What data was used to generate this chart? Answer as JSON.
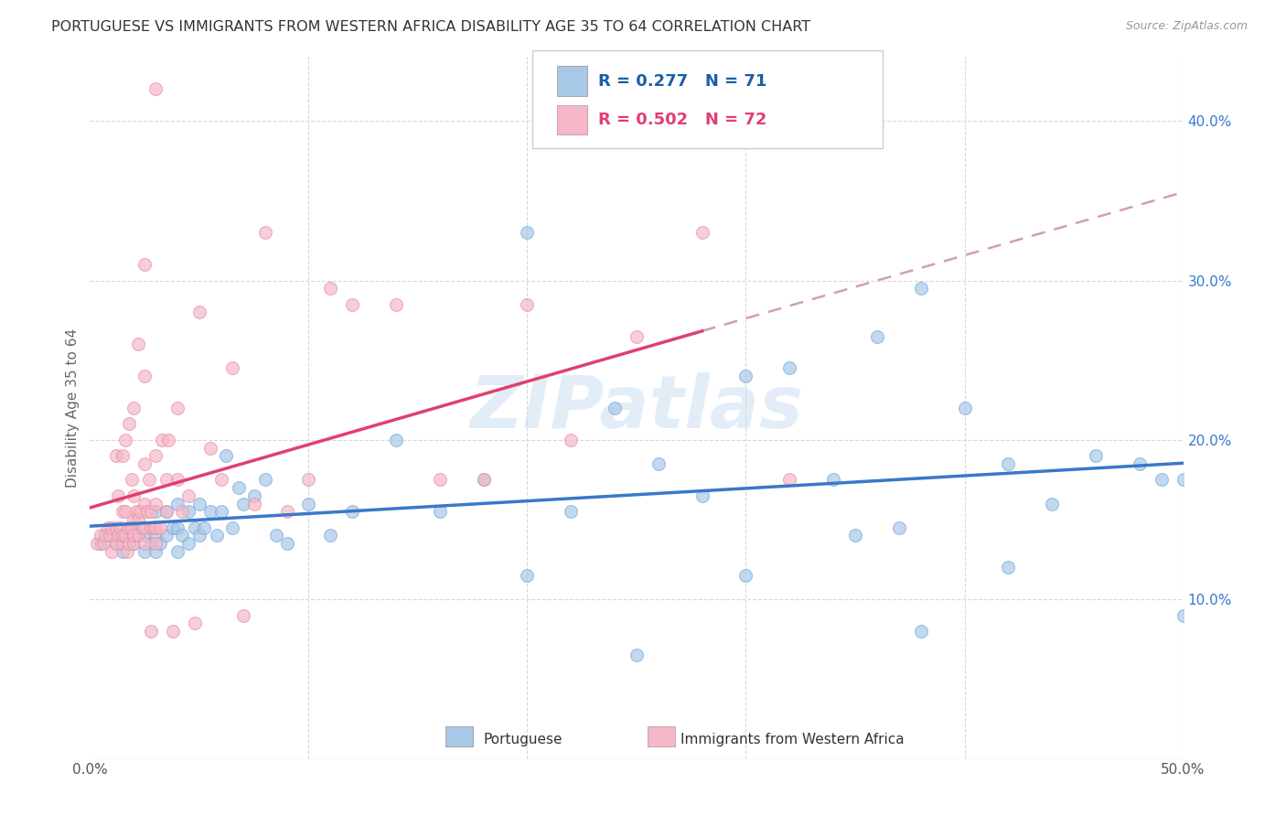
{
  "title": "PORTUGUESE VS IMMIGRANTS FROM WESTERN AFRICA DISABILITY AGE 35 TO 64 CORRELATION CHART",
  "source": "Source: ZipAtlas.com",
  "ylabel": "Disability Age 35 to 64",
  "xlim": [
    0.0,
    0.5
  ],
  "ylim": [
    0.0,
    0.44
  ],
  "xticks": [
    0.0,
    0.1,
    0.2,
    0.3,
    0.4,
    0.5
  ],
  "yticks": [
    0.1,
    0.2,
    0.3,
    0.4
  ],
  "xticklabels": [
    "0.0%",
    "",
    "",
    "",
    "",
    "50.0%"
  ],
  "yticklabels": [
    "10.0%",
    "20.0%",
    "30.0%",
    "40.0%"
  ],
  "color_blue": "#a8c8e8",
  "color_pink": "#f4b8c8",
  "color_blue_line": "#3a78c9",
  "color_pink_line": "#e04070",
  "color_dashed": "#d0a0b0",
  "watermark_text": "ZIPatlas",
  "watermark_color": "#c8ddf0",
  "legend_text1": "R = 0.277   N = 71",
  "legend_text2": "R = 0.502   N = 72",
  "legend_color": "#1a5fa8",
  "blue_x": [
    0.005,
    0.01,
    0.012,
    0.015,
    0.015,
    0.018,
    0.02,
    0.02,
    0.022,
    0.025,
    0.025,
    0.028,
    0.03,
    0.03,
    0.03,
    0.032,
    0.035,
    0.035,
    0.038,
    0.04,
    0.04,
    0.04,
    0.042,
    0.045,
    0.045,
    0.048,
    0.05,
    0.05,
    0.052,
    0.055,
    0.058,
    0.06,
    0.062,
    0.065,
    0.068,
    0.07,
    0.075,
    0.08,
    0.085,
    0.09,
    0.1,
    0.11,
    0.12,
    0.14,
    0.16,
    0.18,
    0.2,
    0.22,
    0.24,
    0.26,
    0.28,
    0.3,
    0.32,
    0.34,
    0.36,
    0.37,
    0.38,
    0.4,
    0.42,
    0.44,
    0.46,
    0.48,
    0.49,
    0.5,
    0.5,
    0.42,
    0.38,
    0.35,
    0.3,
    0.25,
    0.2
  ],
  "blue_y": [
    0.135,
    0.14,
    0.135,
    0.13,
    0.14,
    0.145,
    0.135,
    0.145,
    0.14,
    0.13,
    0.14,
    0.135,
    0.13,
    0.14,
    0.155,
    0.135,
    0.14,
    0.155,
    0.145,
    0.13,
    0.145,
    0.16,
    0.14,
    0.135,
    0.155,
    0.145,
    0.14,
    0.16,
    0.145,
    0.155,
    0.14,
    0.155,
    0.19,
    0.145,
    0.17,
    0.16,
    0.165,
    0.175,
    0.14,
    0.135,
    0.16,
    0.14,
    0.155,
    0.2,
    0.155,
    0.175,
    0.33,
    0.155,
    0.22,
    0.185,
    0.165,
    0.24,
    0.245,
    0.175,
    0.265,
    0.145,
    0.295,
    0.22,
    0.185,
    0.16,
    0.19,
    0.185,
    0.175,
    0.175,
    0.09,
    0.12,
    0.08,
    0.14,
    0.115,
    0.065,
    0.115
  ],
  "pink_x": [
    0.003,
    0.005,
    0.006,
    0.007,
    0.008,
    0.009,
    0.01,
    0.01,
    0.012,
    0.012,
    0.013,
    0.014,
    0.015,
    0.015,
    0.015,
    0.016,
    0.017,
    0.018,
    0.018,
    0.019,
    0.02,
    0.02,
    0.02,
    0.02,
    0.021,
    0.022,
    0.022,
    0.023,
    0.024,
    0.025,
    0.025,
    0.025,
    0.025,
    0.026,
    0.027,
    0.028,
    0.028,
    0.029,
    0.03,
    0.03,
    0.03,
    0.03,
    0.032,
    0.033,
    0.035,
    0.035,
    0.036,
    0.038,
    0.04,
    0.04,
    0.042,
    0.045,
    0.048,
    0.05,
    0.055,
    0.06,
    0.065,
    0.07,
    0.075,
    0.08,
    0.09,
    0.1,
    0.11,
    0.12,
    0.14,
    0.16,
    0.18,
    0.2,
    0.22,
    0.25,
    0.28,
    0.32
  ],
  "pink_y": [
    0.135,
    0.14,
    0.135,
    0.14,
    0.145,
    0.14,
    0.13,
    0.145,
    0.135,
    0.145,
    0.14,
    0.145,
    0.135,
    0.14,
    0.155,
    0.14,
    0.13,
    0.135,
    0.145,
    0.145,
    0.135,
    0.14,
    0.15,
    0.165,
    0.155,
    0.14,
    0.15,
    0.155,
    0.145,
    0.135,
    0.145,
    0.16,
    0.185,
    0.155,
    0.175,
    0.145,
    0.155,
    0.145,
    0.135,
    0.145,
    0.16,
    0.19,
    0.145,
    0.2,
    0.155,
    0.175,
    0.2,
    0.08,
    0.175,
    0.22,
    0.155,
    0.165,
    0.085,
    0.28,
    0.195,
    0.175,
    0.245,
    0.09,
    0.16,
    0.33,
    0.155,
    0.175,
    0.295,
    0.285,
    0.285,
    0.175,
    0.175,
    0.285,
    0.2,
    0.265,
    0.33,
    0.175
  ],
  "pink_extra_x": [
    0.012,
    0.013,
    0.015,
    0.016,
    0.016,
    0.018,
    0.019,
    0.02,
    0.022,
    0.025,
    0.025,
    0.028,
    0.03
  ],
  "pink_extra_y": [
    0.19,
    0.165,
    0.19,
    0.2,
    0.155,
    0.21,
    0.175,
    0.22,
    0.26,
    0.31,
    0.24,
    0.08,
    0.42
  ]
}
